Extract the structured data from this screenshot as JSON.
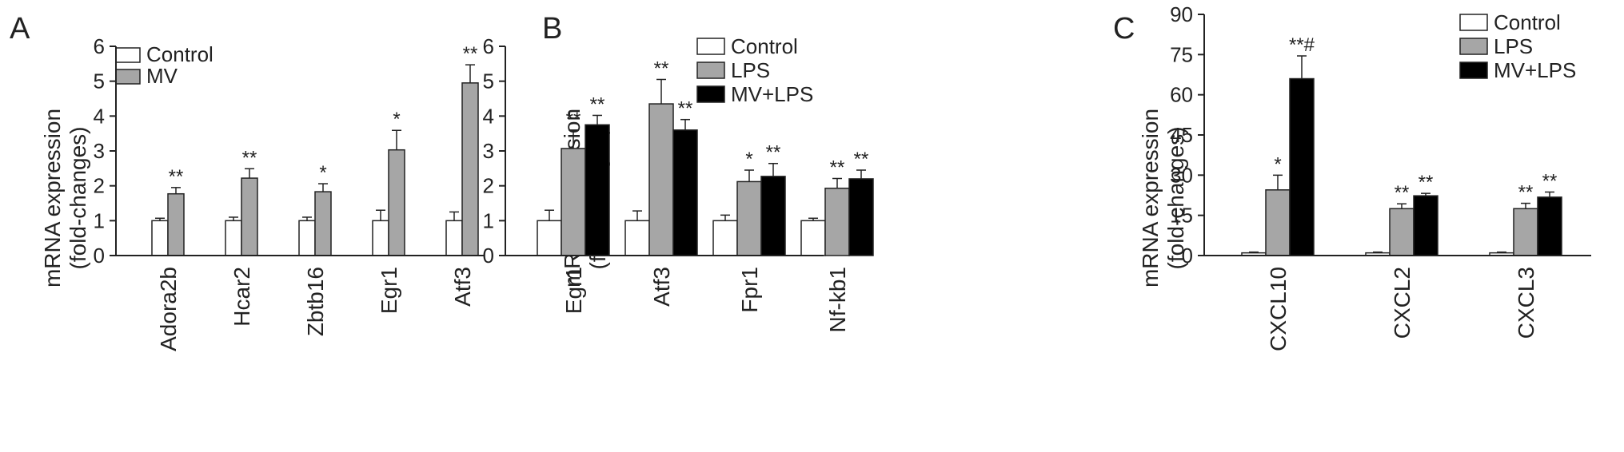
{
  "colors": {
    "Control": "#ffffff",
    "LPS": "#a6a6a6",
    "MV": "#a6a6a6",
    "MV+LPS": "#000000",
    "axis": "#222222"
  },
  "chart_data": [
    {
      "panel": "A",
      "type": "bar",
      "ylabel": "mRNA expression (fold-changes)",
      "ylim": [
        0,
        6
      ],
      "yticks": [
        "0",
        "1",
        "2",
        "3",
        "4",
        "5",
        "6"
      ],
      "categories": [
        "Adora2b",
        "Hcar2",
        "Zbtb16",
        "Egr1",
        "Atf3"
      ],
      "legend_position": "top-left",
      "series": [
        {
          "name": "Control",
          "values": [
            1.0,
            1.0,
            1.0,
            1.0,
            1.0
          ],
          "errors": [
            0.07,
            0.1,
            0.1,
            0.3,
            0.25
          ],
          "sig": [
            "",
            "",
            "",
            "",
            ""
          ]
        },
        {
          "name": "MV",
          "values": [
            1.77,
            2.22,
            1.83,
            3.03,
            4.95
          ],
          "errors": [
            0.18,
            0.27,
            0.23,
            0.56,
            0.52
          ],
          "sig": [
            "**",
            "**",
            "*",
            "*",
            "**"
          ]
        }
      ]
    },
    {
      "panel": "B",
      "type": "bar",
      "ylabel": "mRNA expression (fold-changes)",
      "ylim": [
        0,
        6
      ],
      "yticks": [
        "0",
        "1",
        "2",
        "3",
        "4",
        "5",
        "6"
      ],
      "categories": [
        "Egr1",
        "Atf3",
        "Fpr1",
        "Nf-kb1"
      ],
      "legend_position": "top-right",
      "series": [
        {
          "name": "Control",
          "values": [
            1.0,
            1.0,
            1.0,
            1.0
          ],
          "errors": [
            0.3,
            0.28,
            0.16,
            0.07
          ],
          "sig": [
            "",
            "",
            "",
            ""
          ]
        },
        {
          "name": "LPS",
          "values": [
            3.07,
            4.35,
            2.12,
            1.93
          ],
          "errors": [
            0.53,
            0.7,
            0.33,
            0.28
          ],
          "sig": [
            "**",
            "**",
            "*",
            "**"
          ]
        },
        {
          "name": "MV+LPS",
          "values": [
            3.75,
            3.6,
            2.27,
            2.2
          ],
          "errors": [
            0.27,
            0.3,
            0.37,
            0.25
          ],
          "sig": [
            "**",
            "**",
            "**",
            "**"
          ]
        }
      ]
    },
    {
      "panel": "C",
      "type": "bar",
      "ylabel": "mRNA expression (fold-changes)",
      "ylim": [
        0,
        90
      ],
      "yticks": [
        "0",
        "15",
        "30",
        "45",
        "60",
        "75",
        "90"
      ],
      "categories": [
        "CXCL10",
        "CXCL2",
        "CXCL3"
      ],
      "legend_position": "top-right",
      "series": [
        {
          "name": "Control",
          "values": [
            1.0,
            1.0,
            1.0
          ],
          "errors": [
            0.3,
            0.3,
            0.3
          ],
          "sig": [
            "",
            "",
            ""
          ]
        },
        {
          "name": "LPS",
          "values": [
            24.5,
            17.5,
            17.5
          ],
          "errors": [
            5.5,
            1.8,
            2.0
          ],
          "sig": [
            "*",
            "**",
            "**"
          ]
        },
        {
          "name": "MV+LPS",
          "values": [
            66,
            22.3,
            21.8
          ],
          "errors": [
            8.5,
            0.9,
            1.9
          ],
          "sig": [
            "**#",
            "**",
            "**"
          ]
        }
      ]
    }
  ]
}
